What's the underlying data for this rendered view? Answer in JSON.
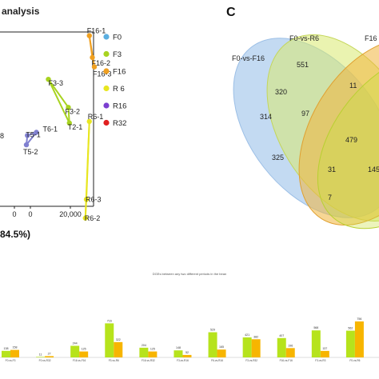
{
  "panel_title": "analysis",
  "panel_letter": "C",
  "x_axis_percent_label": "84.5%)",
  "bar_caption": "DGEs between any two different periods in the bean",
  "colors": {
    "F0": "#5aaee0",
    "F3": "#a8d320",
    "F16": "#f0a020",
    "R6": "#e8e620",
    "R16": "#7b3fd0",
    "R32": "#e02020",
    "T": "#8080d0",
    "bar_green": "#b6e31c",
    "bar_orange": "#f7b500"
  },
  "chart_data": [
    {
      "type": "scatter",
      "title": "analysis",
      "xlabel": "84.5%)",
      "x_ticks": [
        "0",
        "0",
        "20,000"
      ],
      "y_ticks": [
        "8"
      ],
      "legend": [
        "F0",
        "F3",
        "F16",
        "R 6",
        "R16",
        "R32"
      ],
      "legend_position": "right",
      "points": [
        {
          "label": "F16-1",
          "x": 29500,
          "y": 72000,
          "group": "F16"
        },
        {
          "label": "F16-2",
          "x": 31000,
          "y": 58000,
          "group": "F16"
        },
        {
          "label": "F16-3",
          "x": 32000,
          "y": 52000,
          "group": "F16"
        },
        {
          "label": "F3-3",
          "x": 9000,
          "y": 44000,
          "group": "F3"
        },
        {
          "label": "F3-2",
          "x": 19000,
          "y": 26000,
          "group": "F3"
        },
        {
          "label": "T2-1",
          "x": 19500,
          "y": 16000,
          "group": "F3"
        },
        {
          "label": "R6-1",
          "x": 29500,
          "y": 17000,
          "group": "R6"
        },
        {
          "label": "R6-3",
          "x": 28000,
          "y": -33000,
          "group": "R6"
        },
        {
          "label": "R6-2",
          "x": 27500,
          "y": -45000,
          "group": "R6"
        },
        {
          "label": "T6-1",
          "x": 3000,
          "y": 10000,
          "group": "T"
        },
        {
          "label": "T5-1",
          "x": -1500,
          "y": 8000,
          "group": "T"
        },
        {
          "label": "T5-2",
          "x": -2000,
          "y": 2000,
          "group": "T"
        }
      ],
      "xlim": [
        -8000,
        33500
      ],
      "ylim": [
        -60000,
        78000
      ]
    },
    {
      "type": "venn",
      "sets": [
        "F0-vs-F16",
        "F0-vs-R6",
        "F16"
      ],
      "regions": [
        "314",
        "551",
        "320",
        "11",
        "97",
        "479",
        "325",
        "31",
        "145",
        "7"
      ]
    },
    {
      "type": "bar",
      "title": "DGEs between any two different periods in the bean",
      "categories": [
        "F0-vs-F3",
        "F0-vs-R32",
        "F16-vs-F16",
        "F3-vs-R6",
        "F16-vs-R32",
        "F3-vs-R16",
        "F6-vs-R16",
        "F3-vs-R32",
        "F16-vs-F16",
        "F3-vs-R3",
        "F0-vs-R6"
      ],
      "series": [
        {
          "name": "",
          "values": [
            138,
            11,
            244,
            716,
            204,
            148,
            529,
            421,
            407,
            568,
            562
          ]
        },
        {
          "name": "",
          "values": [
            158,
            27,
            125,
            322,
            125,
            52,
            165,
            382,
            196,
            137,
            756
          ]
        }
      ]
    }
  ]
}
